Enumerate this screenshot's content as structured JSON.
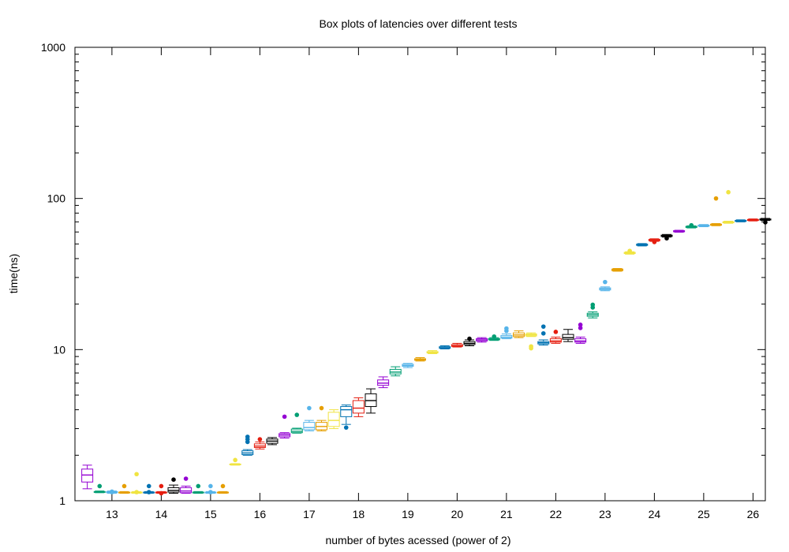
{
  "chart_data": {
    "type": "box",
    "title": "Box plots of latencies over different tests",
    "xlabel": "number of bytes acessed (power of 2)",
    "ylabel": "time(ns)",
    "xlim": [
      12.25,
      26.25
    ],
    "ylim": [
      1,
      1000
    ],
    "yscale": "log",
    "x_ticks": [
      "13",
      "14",
      "15",
      "16",
      "17",
      "18",
      "19",
      "20",
      "21",
      "22",
      "23",
      "24",
      "25",
      "26"
    ],
    "y_ticks": [
      "1",
      "10",
      "100",
      "1000"
    ],
    "grid": false,
    "palette": [
      "#9400d3",
      "#009e73",
      "#56b4e9",
      "#e69f00",
      "#f0e442",
      "#0072b2",
      "#e51e10",
      "#000000"
    ],
    "boxes": [
      {
        "x": 12.5,
        "min": 1.2,
        "q1": 1.33,
        "median": 1.48,
        "q3": 1.62,
        "max": 1.72,
        "outliers": []
      },
      {
        "x": 12.75,
        "min": 1.13,
        "q1": 1.14,
        "median": 1.14,
        "q3": 1.15,
        "max": 1.16,
        "outliers": [
          1.25
        ]
      },
      {
        "x": 13.0,
        "min": 1.12,
        "q1": 1.13,
        "median": 1.14,
        "q3": 1.15,
        "max": 1.16,
        "outliers": [
          1.14,
          1.15
        ]
      },
      {
        "x": 13.25,
        "min": 1.12,
        "q1": 1.13,
        "median": 1.13,
        "q3": 1.14,
        "max": 1.15,
        "outliers": [
          1.25
        ]
      },
      {
        "x": 13.5,
        "min": 1.12,
        "q1": 1.13,
        "median": 1.13,
        "q3": 1.14,
        "max": 1.15,
        "outliers": [
          1.5,
          1.14
        ]
      },
      {
        "x": 13.75,
        "min": 1.12,
        "q1": 1.13,
        "median": 1.13,
        "q3": 1.14,
        "max": 1.15,
        "outliers": [
          1.25,
          1.14
        ]
      },
      {
        "x": 14.0,
        "min": 1.12,
        "q1": 1.13,
        "median": 1.13,
        "q3": 1.14,
        "max": 1.15,
        "outliers": [
          1.25,
          1.12
        ]
      },
      {
        "x": 14.25,
        "min": 1.12,
        "q1": 1.14,
        "median": 1.17,
        "q3": 1.22,
        "max": 1.27,
        "outliers": [
          1.38
        ]
      },
      {
        "x": 14.5,
        "min": 1.12,
        "q1": 1.13,
        "median": 1.16,
        "q3": 1.22,
        "max": 1.25,
        "outliers": [
          1.4
        ]
      },
      {
        "x": 14.75,
        "min": 1.12,
        "q1": 1.13,
        "median": 1.13,
        "q3": 1.14,
        "max": 1.15,
        "outliers": [
          1.25
        ]
      },
      {
        "x": 15.0,
        "min": 1.12,
        "q1": 1.13,
        "median": 1.13,
        "q3": 1.14,
        "max": 1.15,
        "outliers": [
          1.25,
          1.14
        ]
      },
      {
        "x": 15.25,
        "min": 1.12,
        "q1": 1.13,
        "median": 1.13,
        "q3": 1.14,
        "max": 1.15,
        "outliers": [
          1.25
        ]
      },
      {
        "x": 15.5,
        "min": 1.72,
        "q1": 1.73,
        "median": 1.74,
        "q3": 1.75,
        "max": 1.76,
        "outliers": [
          1.86
        ]
      },
      {
        "x": 15.75,
        "min": 2.0,
        "q1": 2.02,
        "median": 2.07,
        "q3": 2.14,
        "max": 2.18,
        "outliers": [
          2.45,
          2.55,
          2.65
        ]
      },
      {
        "x": 16.0,
        "min": 2.2,
        "q1": 2.25,
        "median": 2.3,
        "q3": 2.38,
        "max": 2.45,
        "outliers": [
          2.55
        ]
      },
      {
        "x": 16.25,
        "min": 2.35,
        "q1": 2.4,
        "median": 2.48,
        "q3": 2.56,
        "max": 2.62,
        "outliers": []
      },
      {
        "x": 16.5,
        "min": 2.6,
        "q1": 2.65,
        "median": 2.72,
        "q3": 2.78,
        "max": 2.82,
        "outliers": [
          3.6
        ]
      },
      {
        "x": 16.75,
        "min": 2.8,
        "q1": 2.82,
        "median": 2.88,
        "q3": 2.98,
        "max": 3.02,
        "outliers": [
          3.7
        ]
      },
      {
        "x": 17.0,
        "min": 2.9,
        "q1": 2.95,
        "median": 3.05,
        "q3": 3.3,
        "max": 3.4,
        "outliers": [
          4.1
        ]
      },
      {
        "x": 17.25,
        "min": 2.9,
        "q1": 2.95,
        "median": 3.1,
        "q3": 3.3,
        "max": 3.4,
        "outliers": [
          4.1
        ]
      },
      {
        "x": 17.5,
        "min": 3.0,
        "q1": 3.1,
        "median": 3.4,
        "q3": 3.85,
        "max": 4.0,
        "outliers": []
      },
      {
        "x": 17.75,
        "min": 3.2,
        "q1": 3.6,
        "median": 4.0,
        "q3": 4.2,
        "max": 4.3,
        "outliers": [
          3.05
        ]
      },
      {
        "x": 18.0,
        "min": 3.6,
        "q1": 3.8,
        "median": 4.1,
        "q3": 4.6,
        "max": 4.8,
        "outliers": []
      },
      {
        "x": 18.25,
        "min": 3.8,
        "q1": 4.2,
        "median": 4.6,
        "q3": 5.1,
        "max": 5.5,
        "outliers": []
      },
      {
        "x": 18.5,
        "min": 5.6,
        "q1": 5.8,
        "median": 6.0,
        "q3": 6.3,
        "max": 6.6,
        "outliers": []
      },
      {
        "x": 18.75,
        "min": 6.7,
        "q1": 6.9,
        "median": 7.1,
        "q3": 7.4,
        "max": 7.7,
        "outliers": []
      },
      {
        "x": 19.0,
        "min": 7.6,
        "q1": 7.75,
        "median": 7.85,
        "q3": 8.0,
        "max": 8.1,
        "outliers": []
      },
      {
        "x": 19.25,
        "min": 8.4,
        "q1": 8.5,
        "median": 8.6,
        "q3": 8.7,
        "max": 8.85,
        "outliers": []
      },
      {
        "x": 19.5,
        "min": 9.4,
        "q1": 9.5,
        "median": 9.6,
        "q3": 9.7,
        "max": 9.85,
        "outliers": []
      },
      {
        "x": 19.75,
        "min": 10.1,
        "q1": 10.2,
        "median": 10.3,
        "q3": 10.45,
        "max": 10.6,
        "outliers": []
      },
      {
        "x": 20.0,
        "min": 10.4,
        "q1": 10.5,
        "median": 10.6,
        "q3": 10.8,
        "max": 11.0,
        "outliers": []
      },
      {
        "x": 20.25,
        "min": 10.6,
        "q1": 10.8,
        "median": 11.0,
        "q3": 11.3,
        "max": 11.6,
        "outliers": [
          11.8
        ]
      },
      {
        "x": 20.5,
        "min": 11.2,
        "q1": 11.4,
        "median": 11.6,
        "q3": 11.8,
        "max": 12.0,
        "outliers": []
      },
      {
        "x": 20.75,
        "min": 11.5,
        "q1": 11.6,
        "median": 11.7,
        "q3": 11.85,
        "max": 12.0,
        "outliers": [
          12.2
        ]
      },
      {
        "x": 21.0,
        "min": 11.8,
        "q1": 11.9,
        "median": 12.1,
        "q3": 12.4,
        "max": 12.7,
        "outliers": [
          13.3,
          13.8
        ]
      },
      {
        "x": 21.25,
        "min": 12.0,
        "q1": 12.2,
        "median": 12.5,
        "q3": 12.9,
        "max": 13.3,
        "outliers": []
      },
      {
        "x": 21.5,
        "min": 12.2,
        "q1": 12.3,
        "median": 12.5,
        "q3": 12.7,
        "max": 12.9,
        "outliers": [
          10.2,
          10.5
        ]
      },
      {
        "x": 21.75,
        "min": 10.7,
        "q1": 10.9,
        "median": 11.1,
        "q3": 11.3,
        "max": 11.6,
        "outliers": [
          14.2,
          12.8
        ]
      },
      {
        "x": 22.0,
        "min": 11.0,
        "q1": 11.2,
        "median": 11.4,
        "q3": 11.8,
        "max": 12.1,
        "outliers": [
          13.1
        ]
      },
      {
        "x": 22.25,
        "min": 11.3,
        "q1": 11.7,
        "median": 12.0,
        "q3": 12.6,
        "max": 13.6,
        "outliers": []
      },
      {
        "x": 22.5,
        "min": 11.0,
        "q1": 11.2,
        "median": 11.4,
        "q3": 11.8,
        "max": 12.1,
        "outliers": [
          13.9,
          14.6
        ]
      },
      {
        "x": 22.75,
        "min": 16.2,
        "q1": 16.6,
        "median": 17.0,
        "q3": 17.4,
        "max": 17.8,
        "outliers": [
          19.0,
          19.8
        ]
      },
      {
        "x": 23.0,
        "min": 24.5,
        "q1": 24.8,
        "median": 25.2,
        "q3": 25.6,
        "max": 26.0,
        "outliers": [
          28.0
        ]
      },
      {
        "x": 23.25,
        "min": 33.0,
        "q1": 33.3,
        "median": 33.7,
        "q3": 34.1,
        "max": 34.4,
        "outliers": []
      },
      {
        "x": 23.5,
        "min": 42.8,
        "q1": 43.2,
        "median": 43.6,
        "q3": 44.0,
        "max": 44.4,
        "outliers": [
          45.0
        ]
      },
      {
        "x": 23.75,
        "min": 48.5,
        "q1": 48.9,
        "median": 49.4,
        "q3": 49.9,
        "max": 50.3,
        "outliers": []
      },
      {
        "x": 24.0,
        "min": 52.0,
        "q1": 52.5,
        "median": 53.0,
        "q3": 53.6,
        "max": 54.1,
        "outliers": [
          51.5
        ]
      },
      {
        "x": 24.25,
        "min": 55.5,
        "q1": 56.0,
        "median": 56.6,
        "q3": 57.2,
        "max": 57.8,
        "outliers": [
          54.5
        ]
      },
      {
        "x": 24.5,
        "min": 59.8,
        "q1": 60.2,
        "median": 60.7,
        "q3": 61.2,
        "max": 61.6,
        "outliers": []
      },
      {
        "x": 24.75,
        "min": 63.8,
        "q1": 64.3,
        "median": 64.8,
        "q3": 65.4,
        "max": 65.9,
        "outliers": [
          66.5
        ]
      },
      {
        "x": 25.0,
        "min": 65.0,
        "q1": 65.5,
        "median": 66.0,
        "q3": 66.6,
        "max": 67.2,
        "outliers": []
      },
      {
        "x": 25.25,
        "min": 66.0,
        "q1": 66.5,
        "median": 67.0,
        "q3": 67.6,
        "max": 68.2,
        "outliers": [
          100.0
        ]
      },
      {
        "x": 25.5,
        "min": 68.5,
        "q1": 69.0,
        "median": 69.5,
        "q3": 70.1,
        "max": 70.7,
        "outliers": [
          110.0
        ]
      },
      {
        "x": 25.75,
        "min": 70.0,
        "q1": 70.5,
        "median": 71.0,
        "q3": 71.6,
        "max": 72.2,
        "outliers": []
      },
      {
        "x": 26.0,
        "min": 71.0,
        "q1": 71.5,
        "median": 72.0,
        "q3": 72.6,
        "max": 73.2,
        "outliers": []
      },
      {
        "x": 26.25,
        "min": 71.5,
        "q1": 72.0,
        "median": 72.6,
        "q3": 73.2,
        "max": 73.8,
        "outliers": [
          69.5
        ]
      }
    ]
  }
}
